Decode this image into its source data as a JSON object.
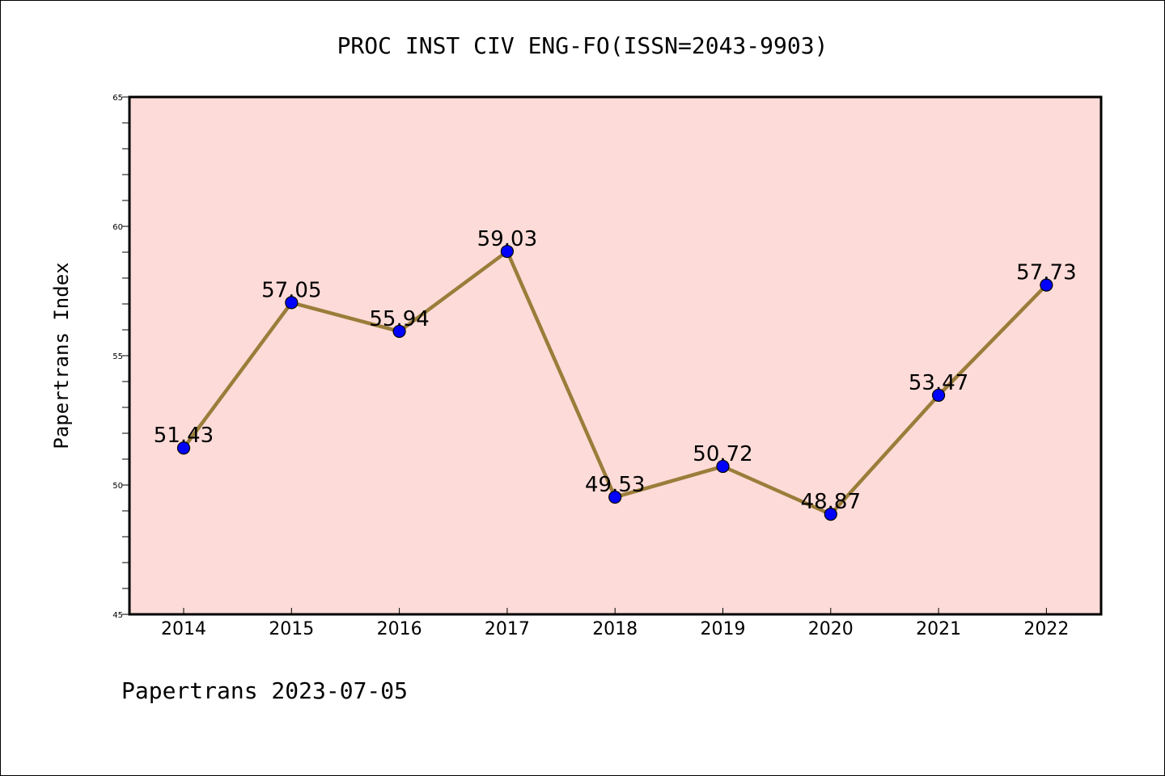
{
  "chart_data": {
    "type": "line",
    "title": "PROC INST CIV ENG-FO(ISSN=2043-9903)",
    "ylabel": "Papertrans Index",
    "xlabel": "",
    "footer": "Papertrans 2023-07-05",
    "categories": [
      "2014",
      "2015",
      "2016",
      "2017",
      "2018",
      "2019",
      "2020",
      "2021",
      "2022"
    ],
    "values": [
      51.43,
      57.05,
      55.94,
      59.03,
      49.53,
      50.72,
      48.87,
      53.47,
      57.73
    ],
    "value_labels": [
      "51.43",
      "57.05",
      "55.94",
      "59.03",
      "49.53",
      "50.72",
      "48.87",
      "53.47",
      "57.73"
    ],
    "ylim": [
      45,
      65
    ],
    "y_ticks": [
      "45",
      "50",
      "55",
      "60",
      "65"
    ],
    "y_tick_values": [
      45,
      50,
      55,
      60,
      65
    ],
    "grid": false,
    "legend": "none",
    "colors": {
      "plot_background": "#fddbd8",
      "line": "#9a7d3a",
      "marker": "#0000ff",
      "axis": "#000000"
    }
  }
}
